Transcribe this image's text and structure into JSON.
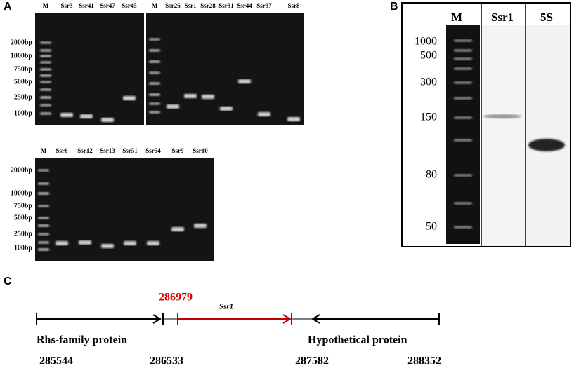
{
  "panel_a": {
    "label": "A",
    "gel_top_left": {
      "lanes": [
        "M",
        "Ssr3",
        "Ssr41",
        "Ssr47",
        "Ssr45"
      ],
      "sizes": [
        "2000bp",
        "1000bp",
        "750bp",
        "500bp",
        "250bp",
        "100bp"
      ]
    },
    "gel_top_right": {
      "lanes": [
        "M",
        "Ssr26",
        "Ssr1",
        "Ssr28",
        "Ssr31",
        "Ssr44",
        "Ssr37",
        "Ssr8"
      ]
    },
    "gel_bottom": {
      "lanes": [
        "M",
        "Ssr6",
        "Ssr12",
        "Ssr13",
        "Ssr51",
        "Ssr54",
        "Ssr9",
        "Ssr10"
      ],
      "sizes": [
        "2000bp",
        "1000bp",
        "750bp",
        "500bp",
        "250bp",
        "100bp"
      ]
    }
  },
  "panel_b": {
    "label": "B",
    "lanes": [
      "M",
      "Ssr1",
      "5S"
    ],
    "sizes": [
      "1000",
      "500",
      "300",
      "150",
      "80",
      "50"
    ]
  },
  "panel_c": {
    "label": "C",
    "start_site": "286979",
    "gene": "Ssr1",
    "left_gene": "Rhs-family protein",
    "right_gene": "Hypothetical protein",
    "coordinates": [
      "285544",
      "286533",
      "287582",
      "288352"
    ]
  }
}
